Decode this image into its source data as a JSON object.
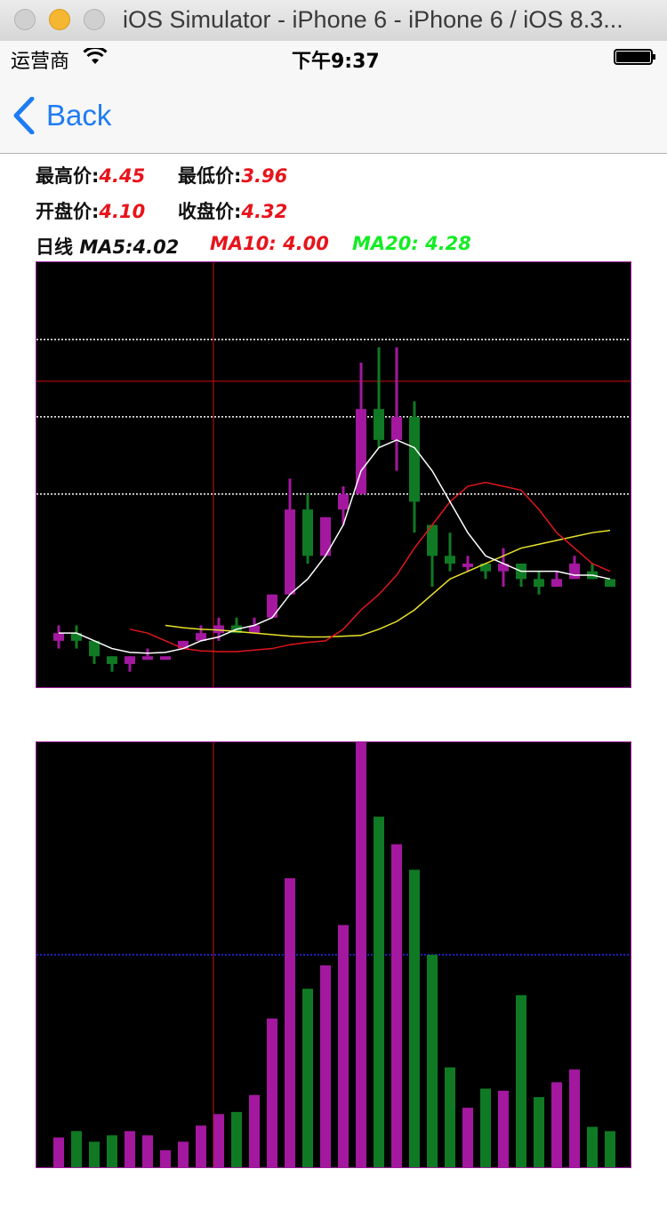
{
  "window": {
    "title": "iOS Simulator - iPhone 6 - iPhone 6 / iOS 8.3..."
  },
  "status": {
    "carrier": "运营商",
    "time": "下午9:37"
  },
  "nav": {
    "back_label": "Back"
  },
  "info": {
    "high_label": "最高价:",
    "high_value": "4.45",
    "low_label": "最低价:",
    "low_value": "3.96",
    "open_label": "开盘价:",
    "open_value": "4.10",
    "close_label": "收盘价:",
    "close_value": "4.32",
    "period_label": "日线",
    "ma5_label": "MA5:",
    "ma5_value": "4.02",
    "ma10_text": "MA10: 4.00",
    "ma20_text": "MA20: 4.28"
  },
  "colors": {
    "up": "#a3189f",
    "down": "#0f7a23",
    "ma5": "#ffffff",
    "ma10": "#e0161a",
    "ma20": "#e8e22c",
    "border": "#9c1a9c",
    "crosshair": "#cc1111",
    "volume_gridline": "#2a2aff"
  },
  "chart_data": [
    {
      "type": "candlestick",
      "price_range": [
        3.9,
        4.45
      ],
      "gridlines": [
        4.15,
        4.25,
        4.35
      ],
      "candles": [
        {
          "o": 3.96,
          "c": 3.97,
          "h": 3.98,
          "l": 3.95
        },
        {
          "o": 3.97,
          "c": 3.96,
          "h": 3.98,
          "l": 3.95
        },
        {
          "o": 3.96,
          "c": 3.94,
          "h": 3.96,
          "l": 3.93
        },
        {
          "o": 3.94,
          "c": 3.93,
          "h": 3.94,
          "l": 3.92
        },
        {
          "o": 3.93,
          "c": 3.94,
          "h": 3.94,
          "l": 3.92
        },
        {
          "o": 3.94,
          "c": 3.94,
          "h": 3.95,
          "l": 3.94
        },
        {
          "o": 3.94,
          "c": 3.94,
          "h": 3.94,
          "l": 3.94
        },
        {
          "o": 3.95,
          "c": 3.96,
          "h": 3.96,
          "l": 3.95
        },
        {
          "o": 3.96,
          "c": 3.97,
          "h": 3.98,
          "l": 3.96
        },
        {
          "o": 3.97,
          "c": 3.98,
          "h": 3.99,
          "l": 3.96
        },
        {
          "o": 3.98,
          "c": 3.97,
          "h": 3.99,
          "l": 3.97
        },
        {
          "o": 3.97,
          "c": 3.98,
          "h": 3.99,
          "l": 3.97
        },
        {
          "o": 3.99,
          "c": 4.02,
          "h": 4.02,
          "l": 3.99
        },
        {
          "o": 4.02,
          "c": 4.13,
          "h": 4.17,
          "l": 4.02
        },
        {
          "o": 4.13,
          "c": 4.07,
          "h": 4.15,
          "l": 4.06
        },
        {
          "o": 4.07,
          "c": 4.12,
          "h": 4.12,
          "l": 4.07
        },
        {
          "o": 4.13,
          "c": 4.15,
          "h": 4.16,
          "l": 4.11
        },
        {
          "o": 4.15,
          "c": 4.26,
          "h": 4.32,
          "l": 4.15
        },
        {
          "o": 4.26,
          "c": 4.22,
          "h": 4.34,
          "l": 4.21
        },
        {
          "o": 4.22,
          "c": 4.25,
          "h": 4.34,
          "l": 4.18
        },
        {
          "o": 4.25,
          "c": 4.14,
          "h": 4.27,
          "l": 4.1
        },
        {
          "o": 4.11,
          "c": 4.07,
          "h": 4.11,
          "l": 4.03
        },
        {
          "o": 4.07,
          "c": 4.06,
          "h": 4.1,
          "l": 4.05
        },
        {
          "o": 4.06,
          "c": 4.06,
          "h": 4.07,
          "l": 4.05
        },
        {
          "o": 4.06,
          "c": 4.05,
          "h": 4.06,
          "l": 4.04
        },
        {
          "o": 4.05,
          "c": 4.06,
          "h": 4.08,
          "l": 4.03
        },
        {
          "o": 4.06,
          "c": 4.04,
          "h": 4.06,
          "l": 4.03
        },
        {
          "o": 4.04,
          "c": 4.03,
          "h": 4.05,
          "l": 4.02
        },
        {
          "o": 4.03,
          "c": 4.04,
          "h": 4.05,
          "l": 4.03
        },
        {
          "o": 4.04,
          "c": 4.06,
          "h": 4.07,
          "l": 4.04
        },
        {
          "o": 4.05,
          "c": 4.04,
          "h": 4.06,
          "l": 4.04
        },
        {
          "o": 4.04,
          "c": 4.03,
          "h": 4.04,
          "l": 4.03
        }
      ],
      "ma5": [
        3.97,
        3.97,
        3.96,
        3.95,
        3.945,
        3.944,
        3.945,
        3.95,
        3.96,
        3.965,
        3.975,
        3.98,
        3.99,
        4.02,
        4.04,
        4.07,
        4.11,
        4.18,
        4.21,
        4.22,
        4.21,
        4.18,
        4.14,
        4.1,
        4.07,
        4.06,
        4.05,
        4.05,
        4.05,
        4.045,
        4.045,
        4.04
      ],
      "ma10": [
        3.975,
        3.97,
        3.96,
        3.95,
        3.947,
        3.946,
        3.946,
        3.948,
        3.95,
        3.955,
        3.958,
        3.96,
        3.975,
        4.0,
        4.02,
        4.045,
        4.08,
        4.11,
        4.14,
        4.16,
        4.165,
        4.16,
        4.155,
        4.13,
        4.1,
        4.08,
        4.06,
        4.05
      ],
      "ma20": [
        3.98,
        3.977,
        3.975,
        3.974,
        3.972,
        3.97,
        3.968,
        3.966,
        3.965,
        3.965,
        3.966,
        3.967,
        3.975,
        3.985,
        4.0,
        4.02,
        4.04,
        4.05,
        4.06,
        4.07,
        4.08,
        4.085,
        4.09,
        4.095,
        4.1,
        4.103
      ]
    },
    {
      "type": "bar",
      "title": "volume",
      "ylim": [
        0,
        100
      ],
      "gridline": 50,
      "values": [
        7,
        8.5,
        6,
        7.5,
        8.5,
        7.5,
        4,
        6,
        9.8,
        12.5,
        13,
        17,
        35,
        68,
        42,
        47.5,
        57,
        100,
        82.5,
        76,
        70,
        50,
        23.5,
        14,
        18.5,
        18,
        40.5,
        16.5,
        20,
        23,
        9.5,
        8.5
      ],
      "directions": [
        "up",
        "down",
        "down",
        "down",
        "up",
        "up",
        "up",
        "up",
        "up",
        "up",
        "down",
        "up",
        "up",
        "up",
        "down",
        "up",
        "up",
        "up",
        "down",
        "up",
        "down",
        "down",
        "down",
        "up",
        "down",
        "up",
        "down",
        "down",
        "up",
        "up",
        "down",
        "down"
      ]
    }
  ]
}
